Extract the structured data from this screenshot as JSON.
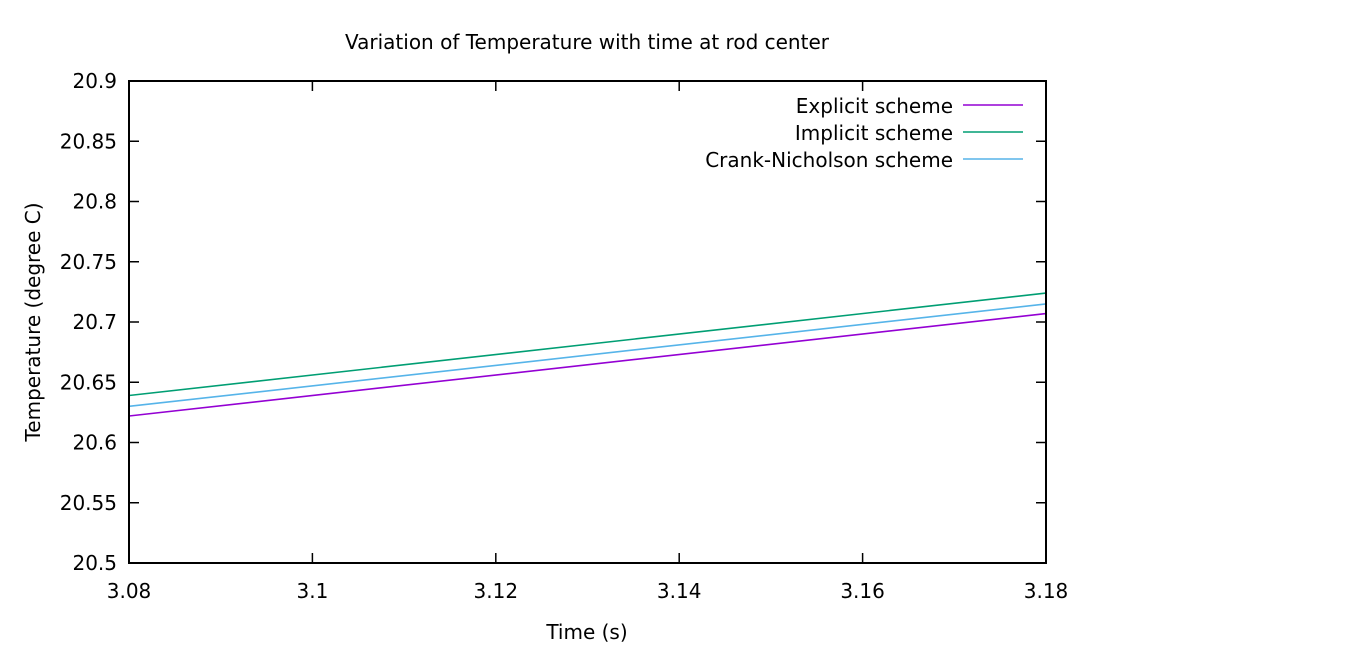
{
  "chart_data": {
    "type": "line",
    "title": "Variation of Temperature with time at rod center",
    "xlabel": "Time (s)",
    "ylabel": "Temperature (degree C)",
    "xlim": [
      3.08,
      3.18
    ],
    "ylim": [
      20.5,
      20.9
    ],
    "xticks": [
      3.08,
      3.1,
      3.12,
      3.14,
      3.16,
      3.18
    ],
    "xtick_labels": [
      "3.08",
      "3.1",
      "3.12",
      "3.14",
      "3.16",
      "3.18"
    ],
    "yticks": [
      20.5,
      20.55,
      20.6,
      20.65,
      20.7,
      20.75,
      20.8,
      20.85,
      20.9
    ],
    "ytick_labels": [
      "20.5",
      "20.55",
      "20.6",
      "20.65",
      "20.7",
      "20.75",
      "20.8",
      "20.85",
      "20.9"
    ],
    "grid": false,
    "legend_position": "top-right",
    "series": [
      {
        "name": "Explicit scheme",
        "color": "#9400d3",
        "x": [
          3.08,
          3.18
        ],
        "y": [
          20.622,
          20.707
        ]
      },
      {
        "name": "Implicit scheme",
        "color": "#009e73",
        "x": [
          3.08,
          3.18
        ],
        "y": [
          20.639,
          20.724
        ]
      },
      {
        "name": "Crank-Nicholson scheme",
        "color": "#56b4e9",
        "x": [
          3.08,
          3.18
        ],
        "y": [
          20.63,
          20.715
        ]
      }
    ]
  }
}
